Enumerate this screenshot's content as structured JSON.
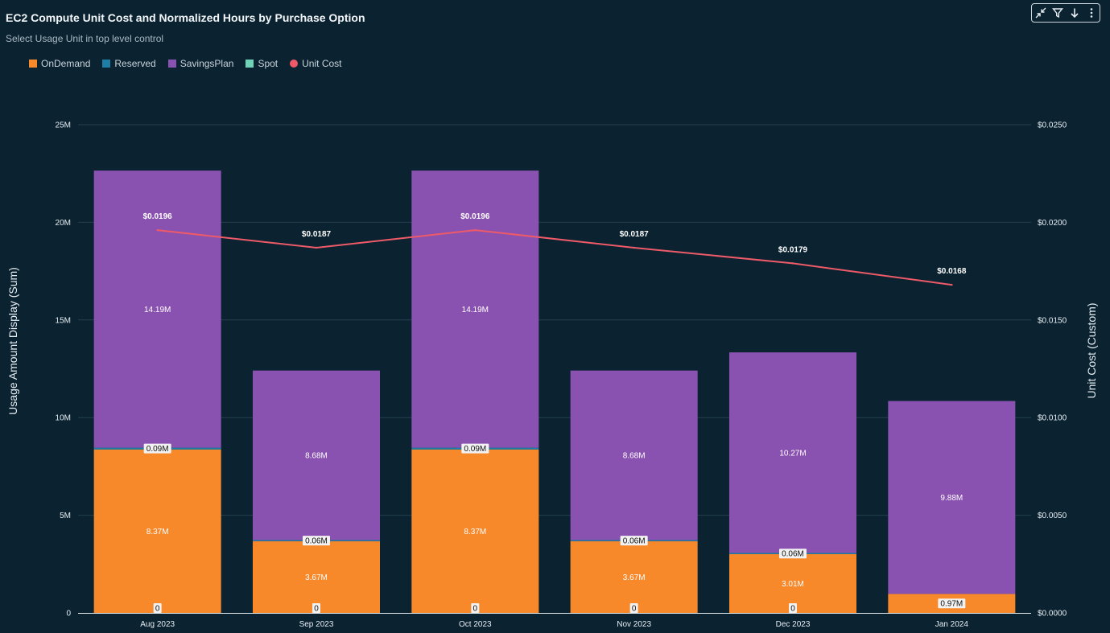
{
  "header": {
    "title": "EC2 Compute Unit Cost and Normalized Hours by Purchase Option",
    "subtitle": "Select Usage Unit in top level control"
  },
  "toolbar": {
    "icons": [
      "collapse-icon",
      "filter-icon",
      "download-icon",
      "more-icon"
    ]
  },
  "legend": [
    {
      "label": "OnDemand",
      "color": "#f8892b",
      "shape": "square"
    },
    {
      "label": "Reserved",
      "color": "#1e7ea6",
      "shape": "square"
    },
    {
      "label": "SavingsPlan",
      "color": "#8a52b0",
      "shape": "square"
    },
    {
      "label": "Spot",
      "color": "#6fd3b8",
      "shape": "square"
    },
    {
      "label": "Unit Cost",
      "color": "#ee5a68",
      "shape": "circle"
    }
  ],
  "chart_data": {
    "type": "bar",
    "stacked": true,
    "categories": [
      "Aug 2023",
      "Sep 2023",
      "Oct 2023",
      "Nov 2023",
      "Dec 2023",
      "Jan 2024"
    ],
    "series": [
      {
        "name": "OnDemand",
        "values": [
          8.37,
          3.67,
          8.37,
          3.67,
          3.01,
          0.97
        ],
        "labels": [
          "8.37M",
          "3.67M",
          "8.37M",
          "3.67M",
          "3.01M",
          "0.97M"
        ]
      },
      {
        "name": "Reserved",
        "values": [
          0.09,
          0.06,
          0.09,
          0.06,
          0.06,
          0.0
        ],
        "labels": [
          "0.09M",
          "0.06M",
          "0.09M",
          "0.06M",
          "0.06M",
          ""
        ]
      },
      {
        "name": "SavingsPlan",
        "values": [
          14.19,
          8.68,
          14.19,
          8.68,
          10.27,
          9.88
        ],
        "labels": [
          "14.19M",
          "8.68M",
          "14.19M",
          "8.68M",
          "10.27M",
          "9.88M"
        ]
      },
      {
        "name": "Spot",
        "values": [
          0,
          0,
          0,
          0,
          0,
          0
        ],
        "labels": [
          "0",
          "0",
          "0",
          "0",
          "0",
          ""
        ]
      }
    ],
    "line_series": {
      "name": "Unit Cost",
      "values": [
        0.0196,
        0.0187,
        0.0196,
        0.0187,
        0.0179,
        0.0168
      ],
      "labels": [
        "$0.0196",
        "$0.0187",
        "$0.0196",
        "$0.0187",
        "$0.0179",
        "$0.0168"
      ]
    },
    "ylabel": "Usage Amount Display (Sum)",
    "y2label": "Unit Cost (Custom)",
    "ylim": [
      0,
      25
    ],
    "y2lim": [
      0,
      0.025
    ],
    "yticks": [
      "0",
      "5M",
      "10M",
      "15M",
      "20M",
      "25M"
    ],
    "y2ticks": [
      "$0.0000",
      "$0.0050",
      "$0.0100",
      "$0.0150",
      "$0.0200",
      "$0.0250"
    ],
    "grid": true,
    "legend_position": "top-left"
  }
}
